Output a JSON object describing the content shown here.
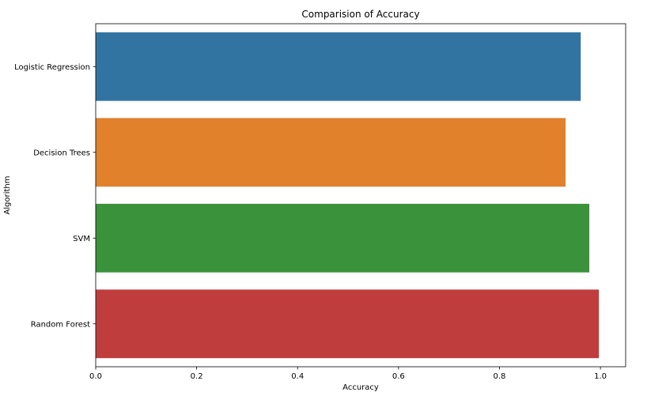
{
  "chart_data": {
    "type": "bar",
    "orientation": "horizontal",
    "title": "Comparision of Accuracy",
    "xlabel": "Accuracy",
    "ylabel": "Algorithm",
    "categories": [
      "Logistic Regression",
      "Decision Trees",
      "SVM",
      "Random Forest"
    ],
    "values": [
      0.961,
      0.931,
      0.978,
      0.997
    ],
    "colors": [
      "#3274a1",
      "#e1812c",
      "#3a923a",
      "#c03d3e"
    ],
    "xlim": [
      0,
      1.05
    ],
    "xticks": [
      0.0,
      0.2,
      0.4,
      0.6,
      0.8,
      1.0
    ],
    "xtick_labels": [
      "0.0",
      "0.2",
      "0.4",
      "0.6",
      "0.8",
      "1.0"
    ],
    "grid": false,
    "legend": false
  }
}
